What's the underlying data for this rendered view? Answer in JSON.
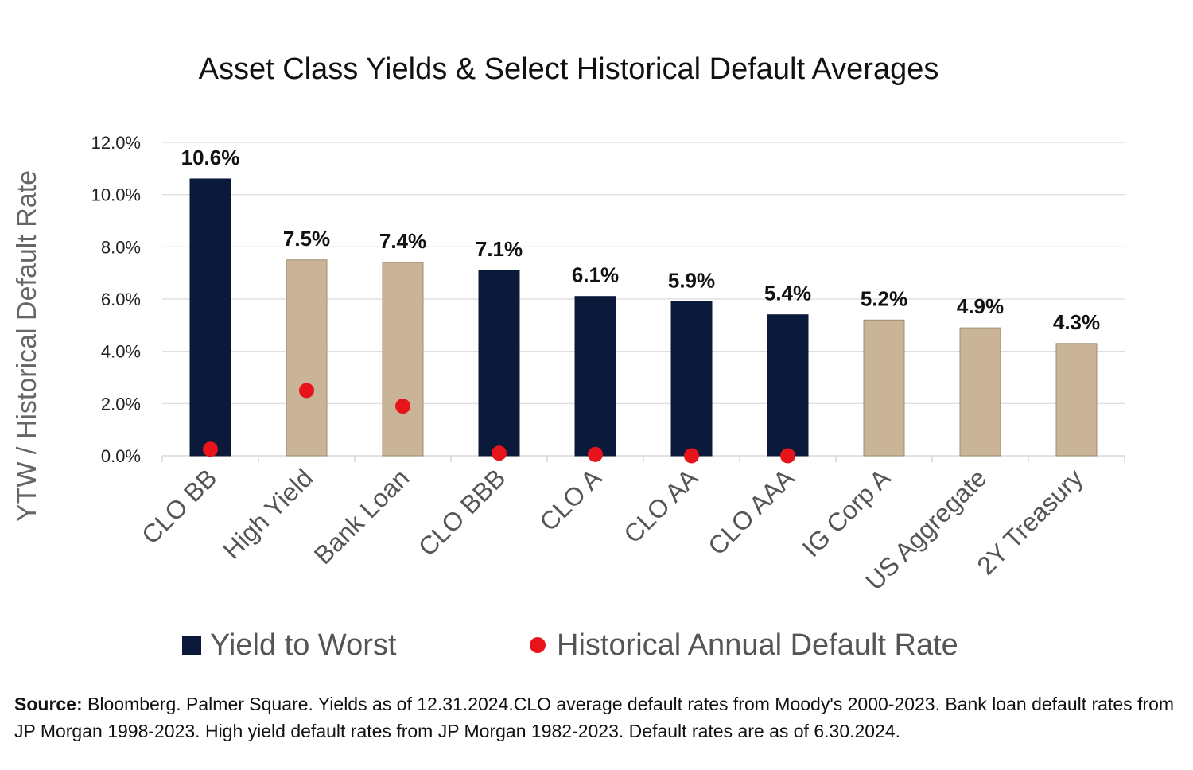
{
  "chart_data": {
    "type": "bar",
    "title": "Asset Class Yields & Select Historical Default Averages",
    "ylabel": "YTW / Historical Default Rate",
    "ylim": [
      0,
      12
    ],
    "yticks": [
      "0.0%",
      "2.0%",
      "4.0%",
      "6.0%",
      "8.0%",
      "10.0%",
      "12.0%"
    ],
    "ytick_values": [
      0,
      2,
      4,
      6,
      8,
      10,
      12
    ],
    "grid": true,
    "legend_placement": "bottom",
    "categories": [
      "CLO BB",
      "High Yield",
      "Bank Loan",
      "CLO BBB",
      "CLO A",
      "CLO AA",
      "CLO AAA",
      "IG Corp A",
      "US Aggregate",
      "2Y Treasury"
    ],
    "series": [
      {
        "name": "Yield to Worst",
        "kind": "bar",
        "values": [
          10.6,
          7.5,
          7.4,
          7.1,
          6.1,
          5.9,
          5.4,
          5.2,
          4.9,
          4.3
        ],
        "labels": [
          "10.6%",
          "7.5%",
          "7.4%",
          "7.1%",
          "6.1%",
          "5.9%",
          "5.4%",
          "5.2%",
          "4.9%",
          "4.3%"
        ],
        "bar_colors": [
          "#0b1a3a",
          "#c9b497",
          "#c9b497",
          "#0b1a3a",
          "#0b1a3a",
          "#0b1a3a",
          "#0b1a3a",
          "#c9b497",
          "#c9b497",
          "#c9b497"
        ]
      },
      {
        "name": "Historical Annual Default Rate",
        "kind": "scatter",
        "values": [
          0.25,
          2.5,
          1.9,
          0.1,
          0.05,
          0.0,
          0.0,
          null,
          null,
          null
        ],
        "color": "#e8141c"
      }
    ],
    "colors": {
      "clo": "#0b1a3a",
      "other": "#c9b497",
      "other_border": "#a08d6e",
      "dot": "#e8141c",
      "grid": "#d9d9d9"
    }
  },
  "source": {
    "label": "Source:",
    "text": " Bloomberg. Palmer Square. Yields as of 12.31.2024.CLO average default rates from Moody's 2000-2023. Bank loan default rates from JP Morgan 1998-2023. High yield default rates from JP Morgan 1982-2023. Default rates are as of 6.30.2024."
  }
}
